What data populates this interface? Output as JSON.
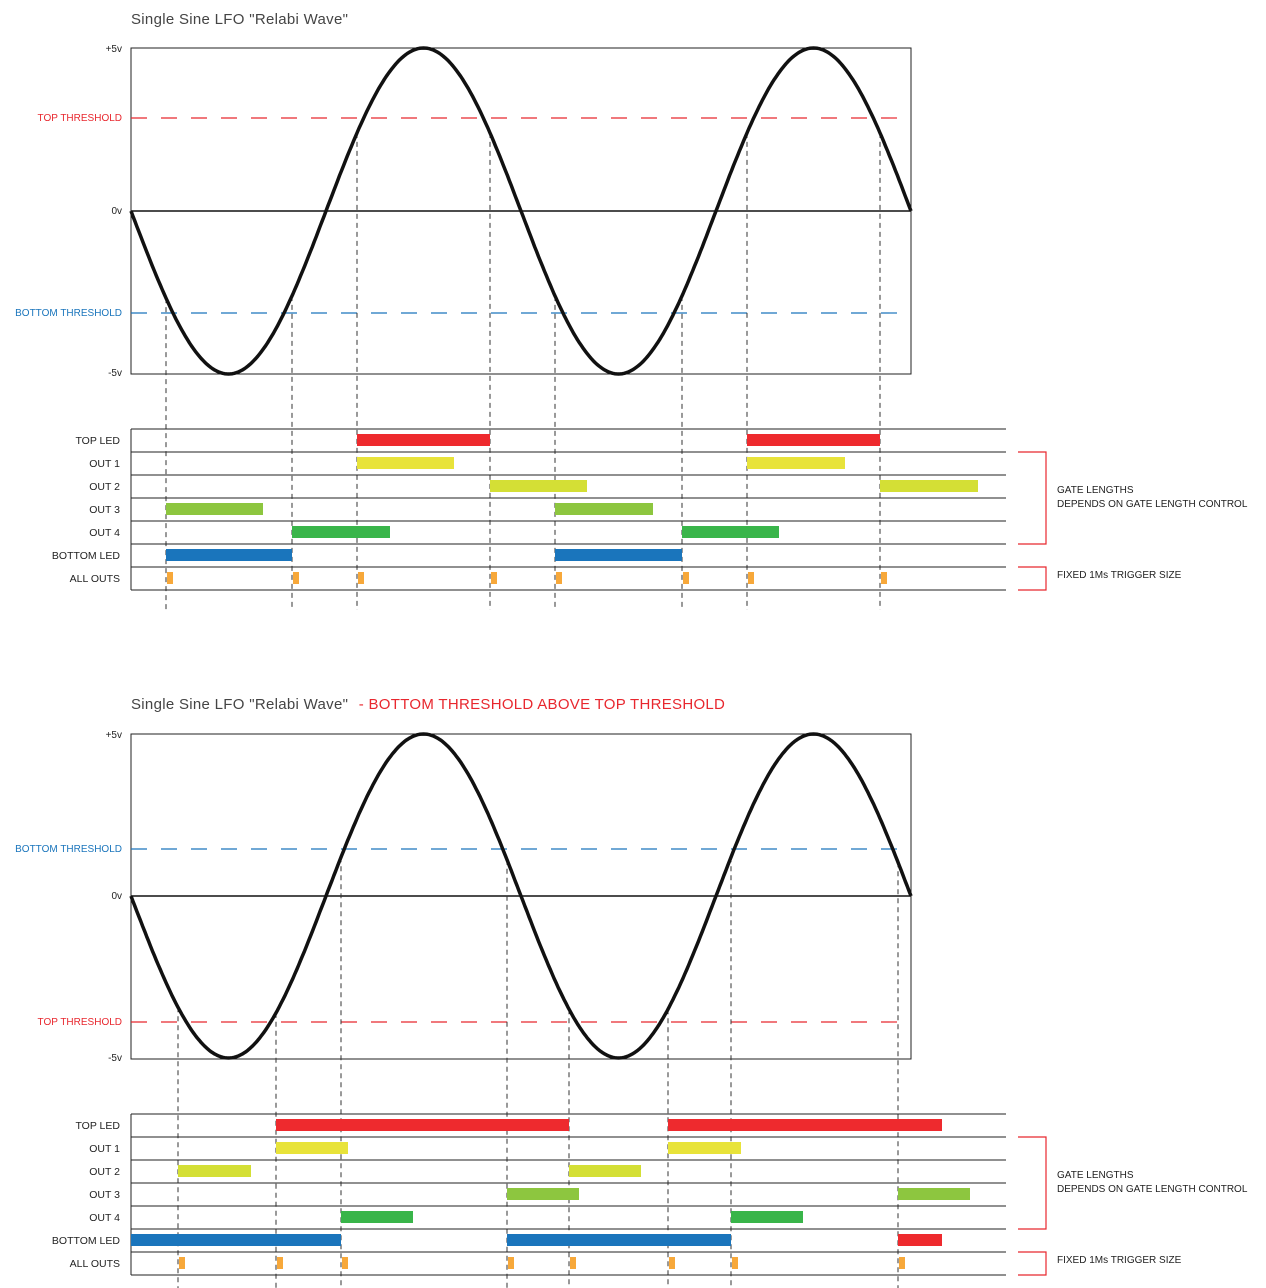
{
  "colors": {
    "wave": "#111111",
    "top_threshold": "#e8272e",
    "bottom_threshold": "#1a75bc",
    "top_led": "#ee2a2e",
    "out1": "#e8e33a",
    "out2": "#d4df35",
    "out3": "#8dc63f",
    "out4": "#39b54a",
    "bottom_led": "#1a75bc",
    "trigger": "#f7a83a",
    "bracket": "#e8272e",
    "grid": "#222222"
  },
  "diagrams": [
    {
      "title": "Single Sine LFO \"Relabi Wave\"",
      "title_note": "",
      "y_labels": {
        "plus5": "+5v",
        "zero": "0v",
        "minus5": "-5v"
      },
      "top_threshold": {
        "label": "TOP THRESHOLD",
        "volts": 2.1
      },
      "bottom_threshold": {
        "label": "BOTTOM THRESHOLD",
        "volts": -3.1
      },
      "crossings": [
        166,
        292,
        357,
        490,
        555,
        682,
        747,
        880
      ],
      "rows": [
        "TOP LED",
        "OUT 1",
        "OUT 2",
        "OUT 3",
        "OUT 4",
        "BOTTOM LED",
        "ALL OUTS"
      ],
      "bars": [
        {
          "row": 0,
          "color": "top_led",
          "from": 357,
          "to": 490
        },
        {
          "row": 0,
          "color": "top_led",
          "from": 747,
          "to": 880
        },
        {
          "row": 1,
          "color": "out1",
          "from": 357,
          "to": 454
        },
        {
          "row": 1,
          "color": "out1",
          "from": 747,
          "to": 845
        },
        {
          "row": 2,
          "color": "out2",
          "from": 490,
          "to": 587
        },
        {
          "row": 2,
          "color": "out2",
          "from": 880,
          "to": 978
        },
        {
          "row": 3,
          "color": "out3",
          "from": 166,
          "to": 263
        },
        {
          "row": 3,
          "color": "out3",
          "from": 555,
          "to": 653
        },
        {
          "row": 4,
          "color": "out4",
          "from": 292,
          "to": 390
        },
        {
          "row": 4,
          "color": "out4",
          "from": 682,
          "to": 779
        },
        {
          "row": 5,
          "color": "bottom_led",
          "from": 166,
          "to": 292
        },
        {
          "row": 5,
          "color": "bottom_led",
          "from": 555,
          "to": 682
        }
      ],
      "gate_note": [
        "GATE LENGTHS",
        "DEPENDS ON GATE LENGTH CONTROL"
      ],
      "trigger_note": "FIXED 1Ms TRIGGER SIZE"
    },
    {
      "title": "Single Sine LFO \"Relabi Wave\"",
      "title_note": "- BOTTOM THRESHOLD ABOVE TOP THRESHOLD",
      "y_labels": {
        "plus5": "+5v",
        "zero": "0v",
        "minus5": "-5v"
      },
      "top_threshold": {
        "label": "TOP THRESHOLD",
        "volts": -3.9
      },
      "bottom_threshold": {
        "label": "BOTTOM THRESHOLD",
        "volts": 1.4
      },
      "crossings": [
        178,
        276,
        341,
        507,
        569,
        668,
        731,
        898
      ],
      "rows": [
        "TOP LED",
        "OUT 1",
        "OUT 2",
        "OUT 3",
        "OUT 4",
        "BOTTOM LED",
        "ALL OUTS"
      ],
      "bars": [
        {
          "row": 0,
          "color": "top_led",
          "from": 276,
          "to": 569
        },
        {
          "row": 0,
          "color": "top_led",
          "from": 668,
          "to": 942
        },
        {
          "row": 1,
          "color": "out1",
          "from": 276,
          "to": 348
        },
        {
          "row": 1,
          "color": "out1",
          "from": 668,
          "to": 741
        },
        {
          "row": 2,
          "color": "out2",
          "from": 178,
          "to": 251
        },
        {
          "row": 2,
          "color": "out2",
          "from": 569,
          "to": 641
        },
        {
          "row": 3,
          "color": "out3",
          "from": 507,
          "to": 579
        },
        {
          "row": 3,
          "color": "out3",
          "from": 898,
          "to": 970
        },
        {
          "row": 4,
          "color": "out4",
          "from": 341,
          "to": 413
        },
        {
          "row": 4,
          "color": "out4",
          "from": 731,
          "to": 803
        },
        {
          "row": 5,
          "color": "bottom_led",
          "from": 131,
          "to": 341
        },
        {
          "row": 5,
          "color": "bottom_led",
          "from": 507,
          "to": 731
        },
        {
          "row": 5,
          "color": "top_led",
          "from": 898,
          "to": 942
        }
      ],
      "gate_note": [
        "GATE LENGTHS",
        "DEPENDS ON GATE LENGTH CONTROL"
      ],
      "trigger_note": "FIXED 1Ms TRIGGER SIZE"
    }
  ]
}
